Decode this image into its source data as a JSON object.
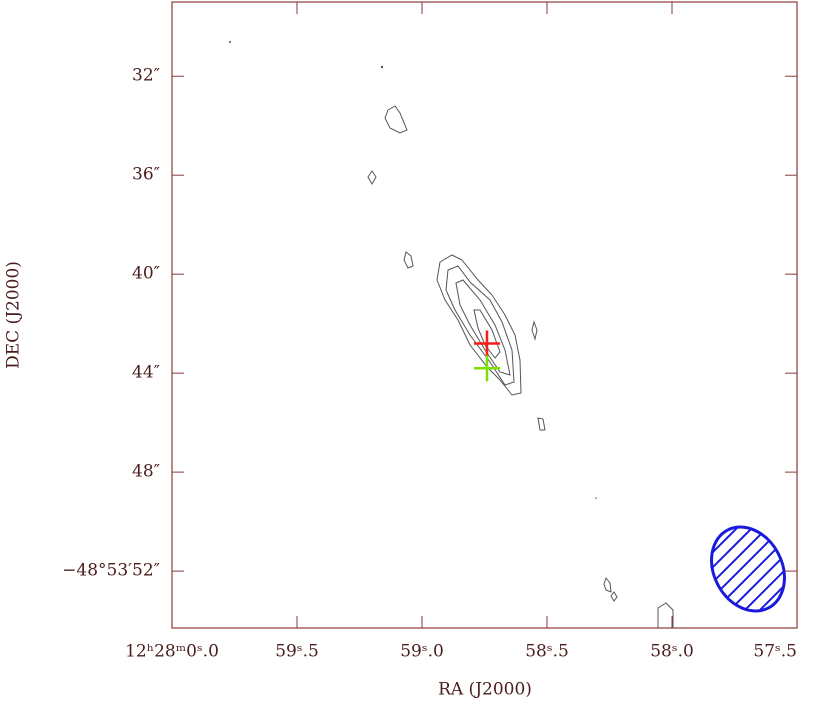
{
  "chart_data": {
    "type": "scatter",
    "x_label": "RA (J2000)",
    "y_label": "DEC (J2000)",
    "xlim": [
      0,
      -2.5
    ],
    "ylim": [
      29,
      54.3
    ],
    "xticks": [
      {
        "value": 0,
        "label": "12ʰ28ᵐ0ˢ.0"
      },
      {
        "value": -0.5,
        "label": "59ˢ.5"
      },
      {
        "value": -1.0,
        "label": "59ˢ.0"
      },
      {
        "value": -1.5,
        "label": "58ˢ.5"
      },
      {
        "value": -2.0,
        "label": "58ˢ.0"
      },
      {
        "value": -2.5,
        "label": "57ˢ.5"
      }
    ],
    "yticks": [
      {
        "value": 32,
        "label": "32″"
      },
      {
        "value": 36,
        "label": "36″"
      },
      {
        "value": 40,
        "label": "40″"
      },
      {
        "value": 44,
        "label": "44″"
      },
      {
        "value": 48,
        "label": "48″"
      },
      {
        "value": 52,
        "label": "−48°53′52″"
      }
    ],
    "markers": [
      {
        "x": -1.26,
        "y": 42.8,
        "color": "#ff1a1a"
      },
      {
        "x": -1.26,
        "y": 43.8,
        "color": "#7fe000"
      }
    ]
  }
}
